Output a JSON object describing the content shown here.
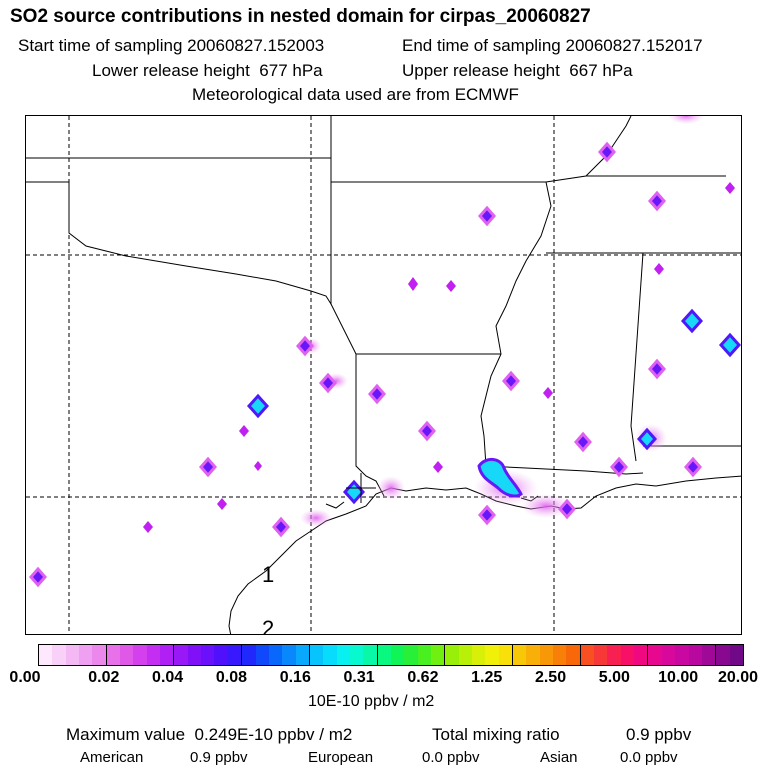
{
  "title": "SO2 source contributions in nested domain for cirpas_20060827",
  "header": {
    "start_label": "Start time of sampling",
    "start_value": "20060827.152003",
    "end_label": "End time of sampling",
    "end_value": "20060827.152017",
    "lower_label": "Lower release height",
    "lower_value": "677 hPa",
    "upper_label": "Upper release height",
    "upper_value": "667 hPa",
    "met_line": "Meteorological data used are from ECMWF"
  },
  "map": {
    "markers": [
      {
        "label": "1"
      },
      {
        "label": "2"
      }
    ]
  },
  "colorbar": {
    "ticks": [
      "0.00",
      "0.02",
      "0.04",
      "0.08",
      "0.16",
      "0.31",
      "0.62",
      "1.25",
      "2.50",
      "5.00",
      "10.00",
      "20.00"
    ],
    "colors": [
      "#fde8fd",
      "#f8d0f8",
      "#f4b8f4",
      "#f0a0f0",
      "#ec88ec",
      "#e870e8",
      "#e058e8",
      "#d440ee",
      "#c42ef2",
      "#b020f4",
      "#9818f6",
      "#8010f8",
      "#6a10fa",
      "#5010fc",
      "#3818fc",
      "#2028fc",
      "#1048fc",
      "#0868fc",
      "#0888fc",
      "#08a8fc",
      "#08c4fc",
      "#08dcfc",
      "#08f0f0",
      "#08f8d0",
      "#08f8a8",
      "#08f880",
      "#10f458",
      "#28f038",
      "#48f020",
      "#70f010",
      "#98f008",
      "#b8f008",
      "#d8f008",
      "#f0f008",
      "#f8e008",
      "#f8c808",
      "#f8b008",
      "#f89808",
      "#f88008",
      "#f86808",
      "#f85020",
      "#f83838",
      "#f82050",
      "#f81068",
      "#f00880",
      "#e80890",
      "#d8089c",
      "#c808a0",
      "#b808a0",
      "#a00898",
      "#880890",
      "#700888"
    ],
    "unit": "10E-10 ppbv / m2"
  },
  "stats": {
    "max_label": "Maximum value",
    "max_value": "0.249E-10 ppbv / m2",
    "total_label": "Total mixing ratio",
    "total_value": "0.9 ppbv",
    "american_label": "American",
    "american_value": "0.9 ppbv",
    "european_label": "European",
    "european_value": "0.0 ppbv",
    "asian_label": "Asian",
    "asian_value": "0.0 ppbv"
  }
}
